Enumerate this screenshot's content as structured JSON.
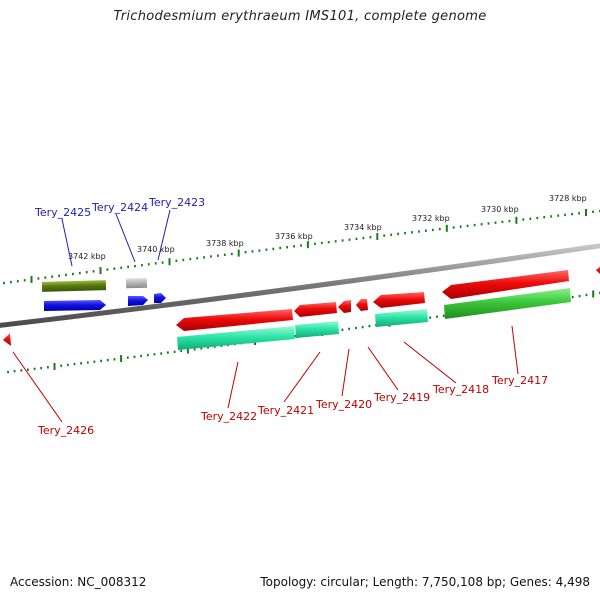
{
  "title": "Trichodesmium erythraeum IMS101, complete genome",
  "footer": {
    "accession": "Accession: NC_008312",
    "summary": "Topology: circular; Length: 7,750,108 bp; Genes: 4,498"
  },
  "scale": {
    "unit": "kbp",
    "labels": [
      "3742 kbp",
      "3740 kbp",
      "3738 kbp",
      "3736 kbp",
      "3734 kbp",
      "3732 kbp",
      "3730 kbp",
      "3728 kbp"
    ]
  },
  "genes_forward": [
    {
      "name": "Tery_2425",
      "color": "#1f1fb0"
    },
    {
      "name": "Tery_2424",
      "color": "#1f1fb0"
    },
    {
      "name": "Tery_2423",
      "color": "#1f1fb0"
    }
  ],
  "genes_reverse": [
    {
      "name": "Tery_2426",
      "color": "#c00000"
    },
    {
      "name": "Tery_2422",
      "color": "#c00000"
    },
    {
      "name": "Tery_2421",
      "color": "#c00000"
    },
    {
      "name": "Tery_2420",
      "color": "#c00000"
    },
    {
      "name": "Tery_2419",
      "color": "#c00000"
    },
    {
      "name": "Tery_2418",
      "color": "#c00000"
    },
    {
      "name": "Tery_2417",
      "color": "#c00000"
    }
  ],
  "colors": {
    "forward_strand": "#1010e0",
    "reverse_strand": "#ee1111",
    "cds_forward": "#5a7a14",
    "cds_reverse": "#2ce6a8",
    "cds_green": "#3cc83c",
    "cds_grey": "#b8b8b8",
    "backbone": "#777777",
    "ticks": "#1a7a1a"
  }
}
